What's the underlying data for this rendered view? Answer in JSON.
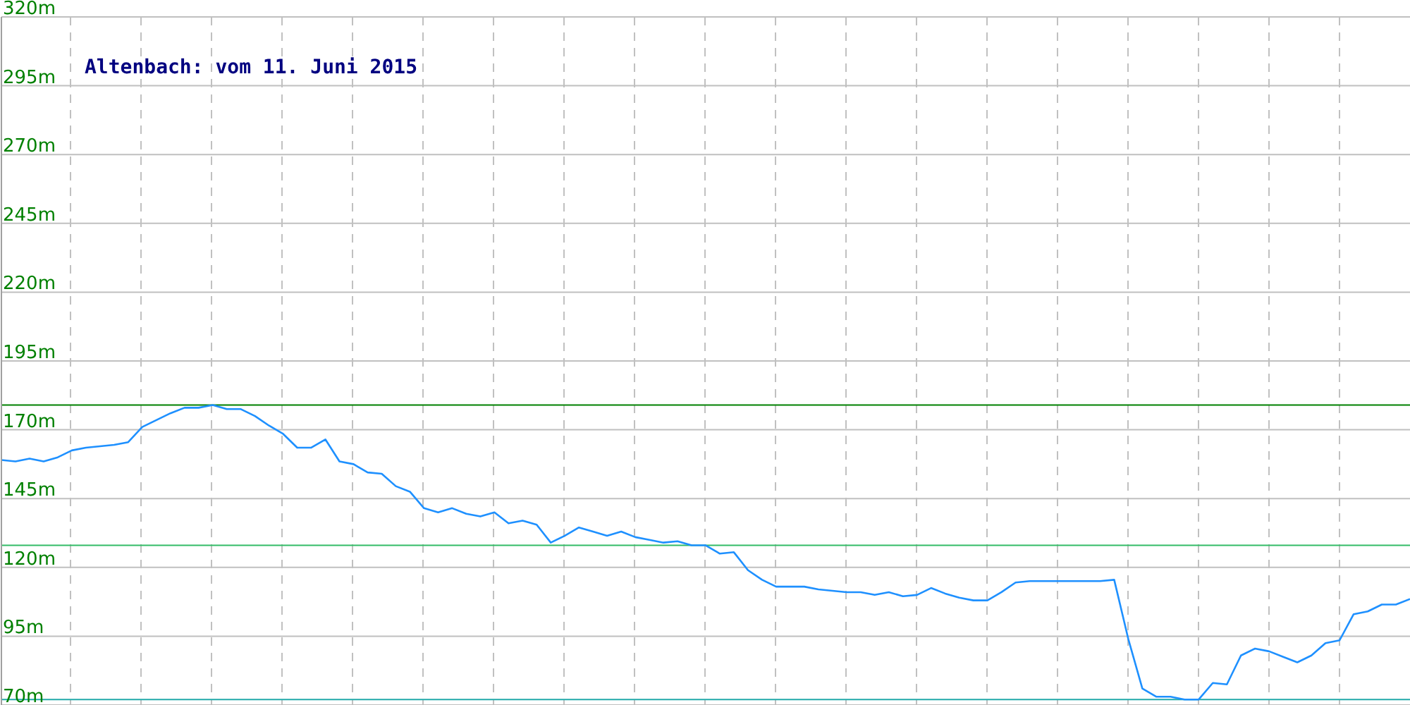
{
  "chart_data": {
    "type": "line",
    "title": "Altenbach: vom 11. Juni 2015",
    "categories": [
      null,
      null,
      null,
      null,
      null,
      null,
      null,
      null,
      null,
      null,
      null,
      null,
      null,
      null,
      null,
      null,
      null,
      null,
      null,
      null,
      null,
      null,
      null,
      null,
      null,
      null,
      null,
      null,
      null,
      null,
      null,
      null,
      null,
      null,
      null,
      null,
      null,
      null,
      null,
      null,
      null,
      null,
      null,
      null,
      null,
      null,
      null,
      null,
      null,
      null,
      null,
      null,
      null,
      null,
      null,
      null,
      null,
      null,
      null,
      null,
      null,
      null,
      null,
      null,
      null,
      null,
      null,
      null,
      null,
      null,
      null,
      null,
      null,
      null,
      null,
      null,
      null,
      null,
      null,
      null,
      null,
      null,
      null,
      null,
      null,
      null,
      null,
      null,
      null,
      null,
      null,
      null,
      null,
      null,
      null,
      null,
      null,
      null,
      null,
      null,
      null
    ],
    "series": [
      {
        "color": "#1e90ff",
        "values": [
          159,
          158.5,
          159.5,
          158.5,
          160,
          162.5,
          163.5,
          164,
          164.5,
          165.5,
          171,
          173.5,
          176,
          178,
          178,
          179,
          177.5,
          177.5,
          175,
          171.5,
          168.5,
          163.5,
          163.5,
          166.5,
          158.5,
          157.5,
          154.5,
          154,
          149.5,
          147.5,
          141.5,
          140,
          141.5,
          139.5,
          138.5,
          140,
          136,
          137,
          135.5,
          129,
          131.5,
          134.5,
          133,
          131.5,
          133,
          131,
          130,
          129,
          129.5,
          128,
          128,
          125,
          125.5,
          119,
          115.5,
          113,
          113,
          113,
          112,
          111.5,
          111,
          111,
          110,
          111,
          109.5,
          110,
          112.5,
          110.5,
          109,
          108,
          108,
          111,
          114.5,
          115,
          115,
          115,
          115,
          115,
          115,
          115.5,
          94,
          76,
          73,
          73,
          72,
          72,
          78,
          77.5,
          88,
          90.5,
          89.5,
          87.5,
          85.5,
          88,
          92.5,
          93.5,
          103,
          104,
          106.5,
          106.5,
          108.5
        ]
      }
    ],
    "ylim": [
      70,
      320
    ],
    "yticks": [
      {
        "value": 70,
        "label": "70m"
      },
      {
        "value": 95,
        "label": "95m"
      },
      {
        "value": 120,
        "label": "120m"
      },
      {
        "value": 145,
        "label": "145m"
      },
      {
        "value": 170,
        "label": "170m"
      },
      {
        "value": 195,
        "label": "195m"
      },
      {
        "value": 220,
        "label": "220m"
      },
      {
        "value": 245,
        "label": "245m"
      },
      {
        "value": 270,
        "label": "270m"
      },
      {
        "value": 295,
        "label": "295m"
      },
      {
        "value": 320,
        "label": "320m"
      }
    ],
    "grid": true,
    "marker": "none",
    "line_style": "solid",
    "tick_labels": "y",
    "ref_lines": [
      {
        "axis": "y",
        "value": 179,
        "color": "#008000"
      },
      {
        "axis": "y",
        "value": 128,
        "color": "#33bb66"
      },
      {
        "axis": "y",
        "value": 72,
        "color": "#22aaaa"
      }
    ]
  }
}
